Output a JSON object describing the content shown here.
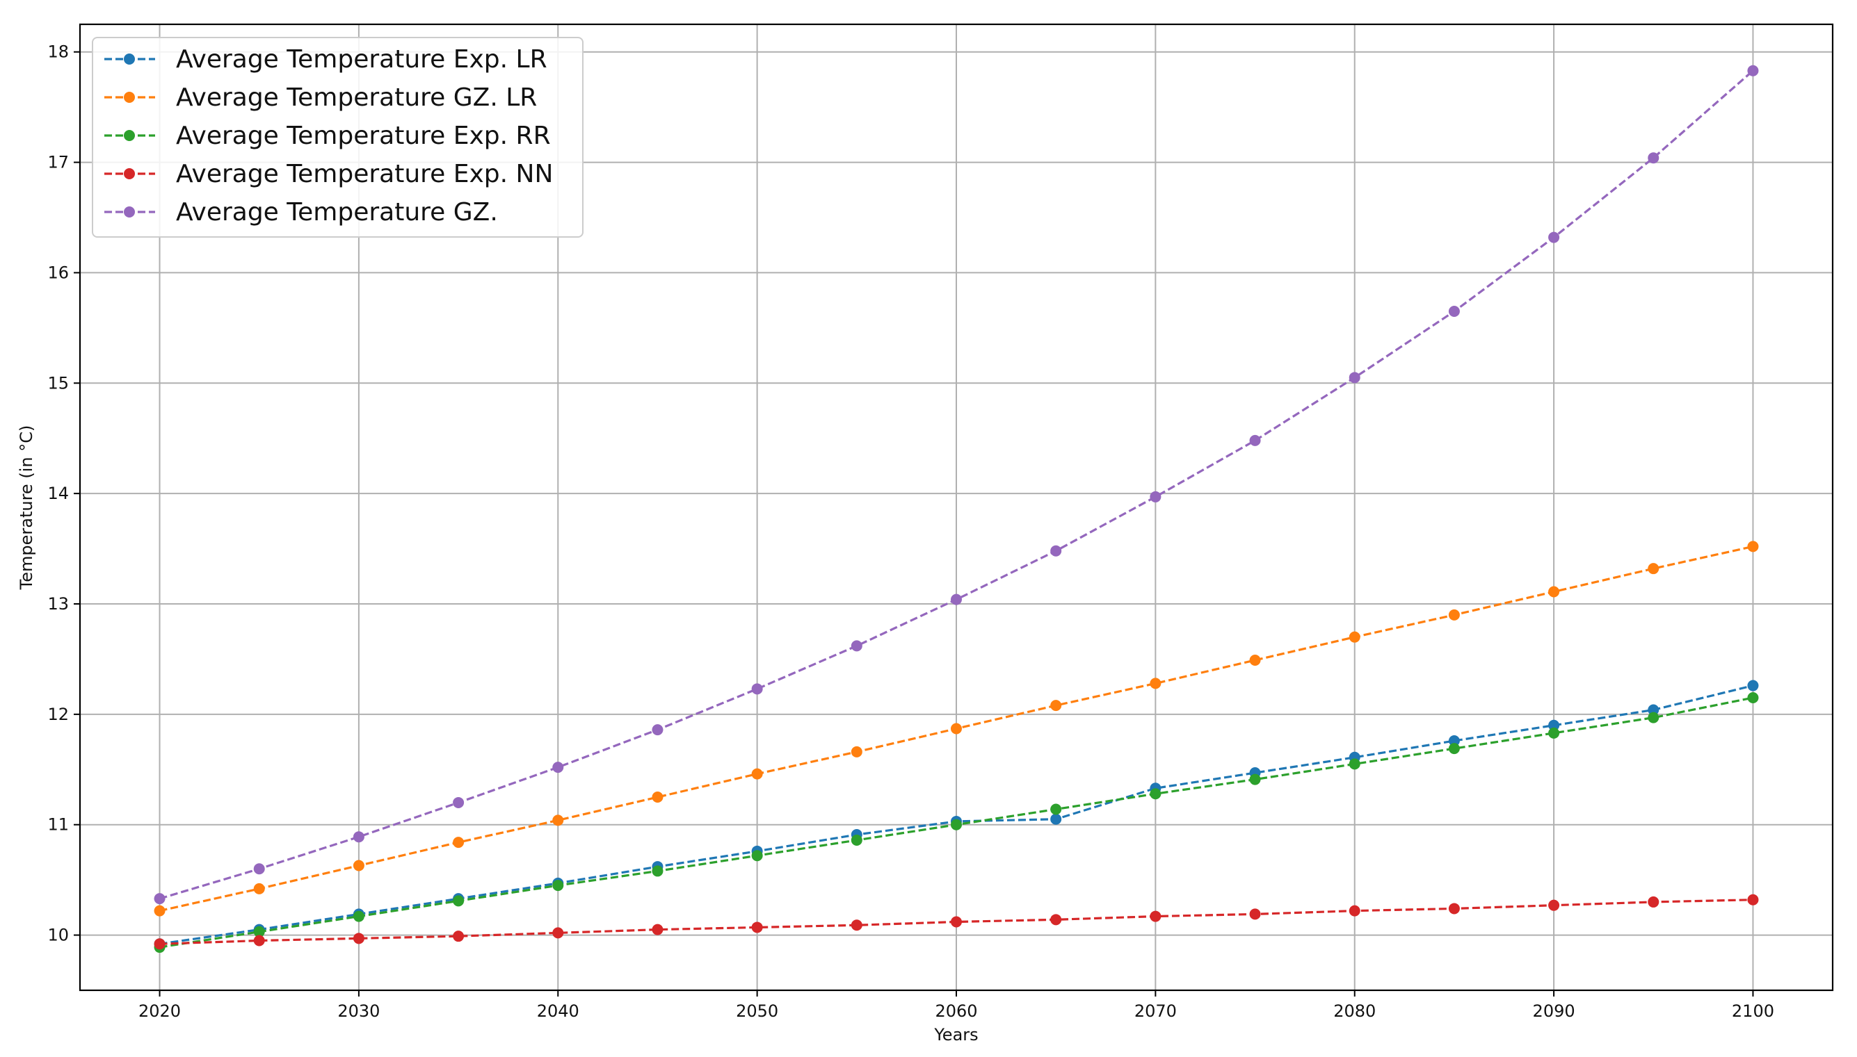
{
  "chart_data": {
    "type": "line",
    "title": "",
    "xlabel": "Years",
    "ylabel": "Temperature (in °C)",
    "xlim": [
      2016,
      2104
    ],
    "ylim": [
      9.5,
      18.25
    ],
    "x_ticks": [
      2020,
      2030,
      2040,
      2050,
      2060,
      2070,
      2080,
      2090,
      2100
    ],
    "y_ticks": [
      10,
      11,
      12,
      13,
      14,
      15,
      16,
      17,
      18
    ],
    "grid": true,
    "legend_position": "top-left",
    "x": [
      2020,
      2025,
      2030,
      2035,
      2040,
      2045,
      2050,
      2055,
      2060,
      2065,
      2070,
      2075,
      2080,
      2085,
      2090,
      2095,
      2100
    ],
    "series": [
      {
        "name": "Average Temperature Exp. LR",
        "color": "#1f77b4",
        "values": [
          9.92,
          10.05,
          10.19,
          10.33,
          10.47,
          10.62,
          10.76,
          10.91,
          11.03,
          11.05,
          11.33,
          11.47,
          11.61,
          11.76,
          11.9,
          12.04,
          12.26
        ]
      },
      {
        "name": "Average Temperature GZ. LR",
        "color": "#ff7f0e",
        "values": [
          10.22,
          10.42,
          10.63,
          10.84,
          11.04,
          11.25,
          11.46,
          11.66,
          11.87,
          12.08,
          12.28,
          12.49,
          12.7,
          12.9,
          13.11,
          13.32,
          13.52
        ]
      },
      {
        "name": "Average Temperature Exp. RR",
        "color": "#2ca02c",
        "values": [
          9.89,
          10.03,
          10.17,
          10.31,
          10.45,
          10.58,
          10.72,
          10.86,
          11.0,
          11.14,
          11.28,
          11.41,
          11.55,
          11.69,
          11.83,
          11.97,
          12.15
        ]
      },
      {
        "name": "Average Temperature Exp. NN",
        "color": "#d62728",
        "values": [
          9.92,
          9.95,
          9.97,
          9.99,
          10.02,
          10.05,
          10.07,
          10.09,
          10.12,
          10.14,
          10.17,
          10.19,
          10.22,
          10.24,
          10.27,
          10.3,
          10.32
        ]
      },
      {
        "name": "Average Temperature GZ.",
        "color": "#9467bd",
        "values": [
          10.33,
          10.6,
          10.89,
          11.2,
          11.52,
          11.86,
          12.23,
          12.62,
          13.04,
          13.48,
          13.97,
          14.48,
          15.05,
          15.65,
          16.32,
          17.04,
          17.83
        ]
      }
    ]
  }
}
